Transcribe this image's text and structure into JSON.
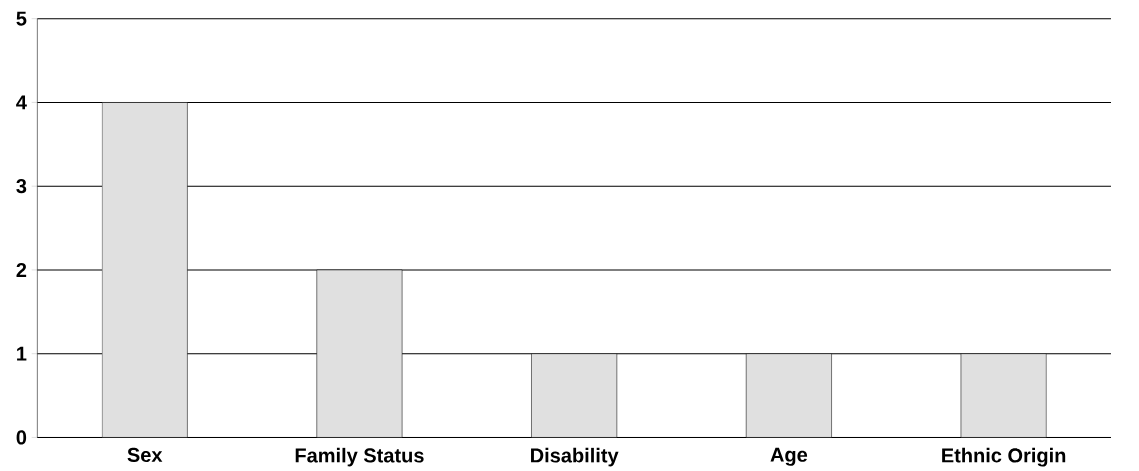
{
  "chart_data": {
    "type": "bar",
    "categories": [
      "Sex",
      "Family Status",
      "Disability",
      "Age",
      "Ethnic Origin"
    ],
    "values": [
      4,
      2,
      1,
      1,
      1
    ],
    "color": "#e0e0e0",
    "ylim": [
      0,
      5
    ],
    "yticks": [
      0,
      1,
      2,
      3,
      4,
      5
    ],
    "grid": "y"
  }
}
